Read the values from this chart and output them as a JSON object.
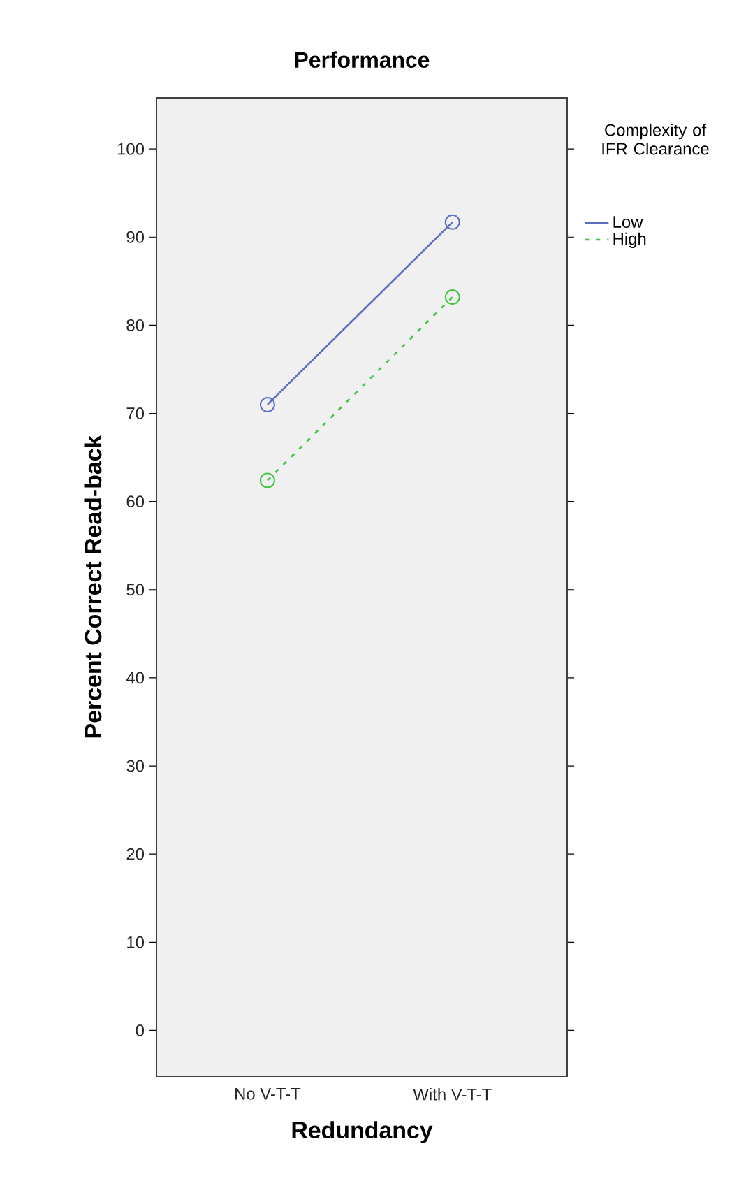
{
  "chart_data": {
    "type": "line",
    "title": "Performance",
    "xlabel": "Redundancy",
    "ylabel": "Percent Correct Read-back",
    "legend_title": "Complexity of IFR Clearance",
    "categories": [
      "No V-T-T",
      "With V-T-T"
    ],
    "series": [
      {
        "name": "Low",
        "color": "#5b6ec2",
        "values": [
          71,
          91.7
        ],
        "line_style": "solid"
      },
      {
        "name": "High",
        "color": "#3fc43f",
        "values": [
          62.4,
          83.2
        ],
        "line_style": "dashed"
      }
    ],
    "marker": "circle",
    "legend": "top right",
    "ylim": [
      -5.2,
      105.8
    ],
    "yticks": [
      0,
      10,
      20,
      30,
      40,
      50,
      60,
      70,
      80,
      90,
      100
    ]
  }
}
